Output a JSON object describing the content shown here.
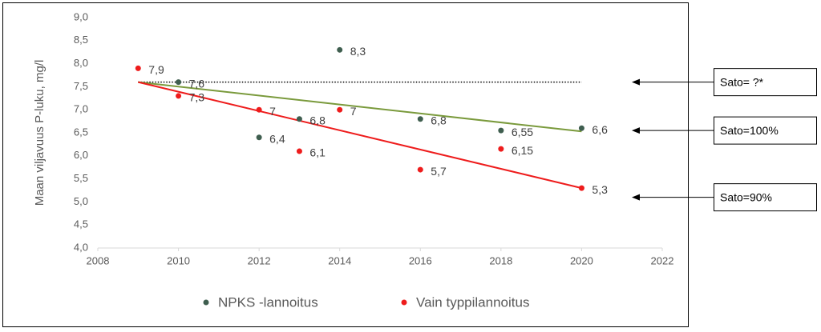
{
  "chart_data": {
    "type": "scatter",
    "y_label": "Maan viljavuus P-luku, mg/l",
    "xlim": [
      2008,
      2022
    ],
    "xticks": [
      2008,
      2010,
      2012,
      2014,
      2016,
      2018,
      2020,
      2022
    ],
    "ylim": [
      4.0,
      9.0
    ],
    "yticks": [
      {
        "value": 4.0,
        "label": "4,0"
      },
      {
        "value": 4.5,
        "label": "4,5"
      },
      {
        "value": 5.0,
        "label": "5,0"
      },
      {
        "value": 5.5,
        "label": "5,5"
      },
      {
        "value": 6.0,
        "label": "6,0"
      },
      {
        "value": 6.5,
        "label": "6,5"
      },
      {
        "value": 7.0,
        "label": "7,0"
      },
      {
        "value": 7.5,
        "label": "7,5"
      },
      {
        "value": 8.0,
        "label": "8,0"
      },
      {
        "value": 8.5,
        "label": "8,5"
      },
      {
        "value": 9.0,
        "label": "9,0"
      }
    ],
    "grid": false,
    "legend": "bottom",
    "series": [
      {
        "name": "NPKS -lannoitus",
        "color": "#3f5e4f",
        "x": [
          2010,
          2012,
          2013,
          2014,
          2016,
          2018,
          2020
        ],
        "values": [
          7.6,
          6.4,
          6.8,
          8.3,
          6.8,
          6.55,
          6.6
        ],
        "value_labels": [
          "7,6",
          "6,4",
          "6,8",
          "8,3",
          "6,8",
          "6,55",
          "6,6"
        ]
      },
      {
        "name": "Vain typpilannoitus",
        "color": "#ee1c1c",
        "x": [
          2009,
          2010,
          2012,
          2013,
          2014,
          2016,
          2018,
          2020
        ],
        "values": [
          7.9,
          7.3,
          7.0,
          6.1,
          7.0,
          5.7,
          6.15,
          5.3
        ],
        "value_labels": [
          "7,9",
          "7,3",
          "7",
          "6,1",
          "7",
          "5,7",
          "6,15",
          "5,3"
        ]
      }
    ],
    "trendlines": [
      {
        "color": "#7a9a3c",
        "x": [
          2009,
          2020
        ],
        "values": [
          7.6,
          6.53
        ]
      },
      {
        "color": "#ee1c1c",
        "x": [
          2009,
          2020
        ],
        "values": [
          7.6,
          5.3
        ]
      }
    ],
    "reference_line": {
      "color": "#000000",
      "x": [
        2009,
        2020
      ],
      "value": 7.6
    },
    "annotations": [
      {
        "text": "Sato= ?*",
        "y": 7.6
      },
      {
        "text": "Sato=100%",
        "y": 6.55
      },
      {
        "text": "Sato=90%",
        "y": 5.1
      }
    ]
  }
}
